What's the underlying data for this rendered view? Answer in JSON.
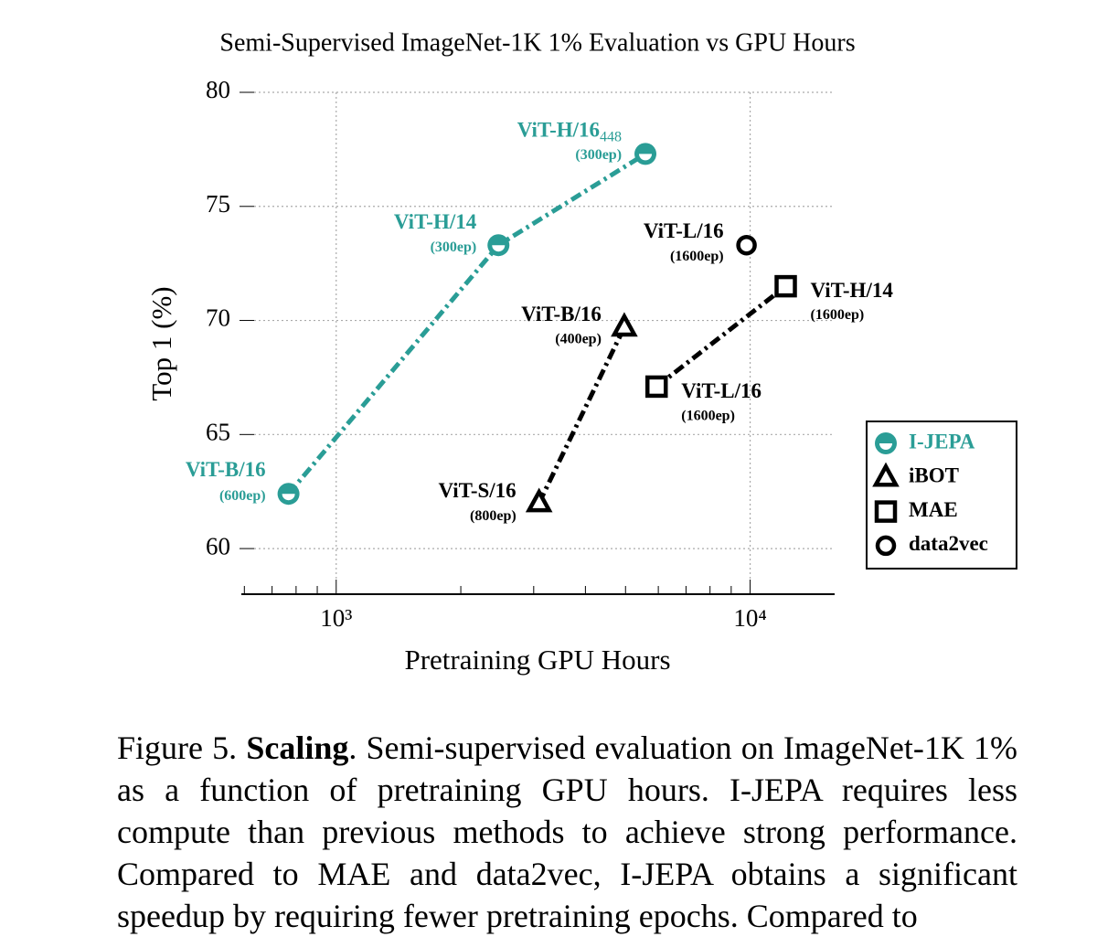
{
  "chart_data": {
    "type": "scatter",
    "title": "Semi-Supervised ImageNet-1K 1% Evaluation vs GPU Hours",
    "x_label": "Pretraining GPU Hours",
    "y_label": "Top 1 (%)",
    "xscale": "log",
    "xlim": [
      590,
      16000
    ],
    "ylim": [
      58,
      80
    ],
    "xticks": [
      {
        "value": 1000,
        "label": "10³"
      },
      {
        "value": 10000,
        "label": "10⁴"
      }
    ],
    "xminorticks": [
      600,
      700,
      800,
      900,
      2000,
      3000,
      4000,
      5000,
      6000,
      7000,
      8000,
      9000
    ],
    "yticks": [
      60,
      65,
      70,
      75,
      80
    ],
    "grid": true,
    "legend": "right",
    "series": [
      {
        "name": "I-JEPA",
        "color": "#2a9d96",
        "marker": "half-circle",
        "line": true,
        "x": [
          767,
          2466,
          5585
        ],
        "values": [
          62.4,
          73.3,
          77.3
        ],
        "point_labels": [
          {
            "label": "ViT-B/16",
            "epochs": "(600ep)"
          },
          {
            "label": "ViT-H/14",
            "epochs": "(300ep)"
          },
          {
            "label": "ViT-H/16",
            "label_sub": "448",
            "epochs": "(300ep)"
          }
        ]
      },
      {
        "name": "iBOT",
        "color": "#000000",
        "marker": "triangle",
        "line": true,
        "x": [
          3091,
          4966
        ],
        "values": [
          62.0,
          69.7
        ],
        "point_labels": [
          {
            "label": "ViT-S/16",
            "epochs": "(800ep)"
          },
          {
            "label": "ViT-B/16",
            "epochs": "(400ep)"
          }
        ]
      },
      {
        "name": "MAE",
        "color": "#000000",
        "marker": "square",
        "line": true,
        "x": [
          5943,
          12190
        ],
        "values": [
          67.1,
          71.5
        ],
        "point_labels": [
          {
            "label": "ViT-L/16",
            "epochs": "(1600ep)"
          },
          {
            "label": "ViT-H/14",
            "epochs": "(1600ep)"
          }
        ]
      },
      {
        "name": "data2vec",
        "color": "#000000",
        "marker": "circle",
        "line": false,
        "x": [
          9800
        ],
        "values": [
          73.3
        ],
        "point_labels": [
          {
            "label": "ViT-L/16",
            "epochs": "(1600ep)"
          }
        ]
      }
    ]
  },
  "caption": {
    "label": "Figure 5.",
    "bold": "Scaling",
    "text": ". Semi-supervised evaluation on ImageNet-1K 1% as a function of pretraining GPU hours. I-JEPA requires less compute than previous methods to achieve strong performance. Compared to MAE and data2vec, I-JEPA obtains a significant speedup by requiring fewer pretraining epochs. Compared to"
  }
}
